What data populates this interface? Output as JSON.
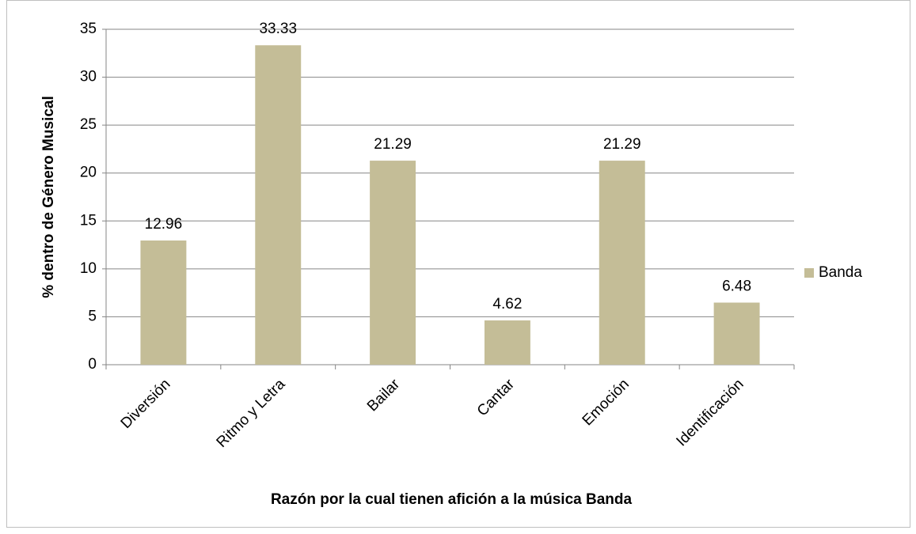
{
  "chart_data": {
    "type": "bar",
    "categories": [
      "Diversión",
      "Ritmo y Letra",
      "Bailar",
      "Cantar",
      "Emoción",
      "Identificación"
    ],
    "series": [
      {
        "name": "Banda",
        "color": "#c4bd97",
        "values": [
          12.96,
          33.33,
          21.29,
          4.62,
          21.29,
          6.48
        ]
      }
    ],
    "xlabel": "Razón por la cual tienen afición a la música Banda",
    "ylabel": "% dentro de Género Musical",
    "ylim": [
      0,
      35
    ],
    "yticks": [
      0,
      5,
      10,
      15,
      20,
      25,
      30,
      35
    ],
    "grid": true,
    "data_labels": true,
    "legend": "right"
  }
}
